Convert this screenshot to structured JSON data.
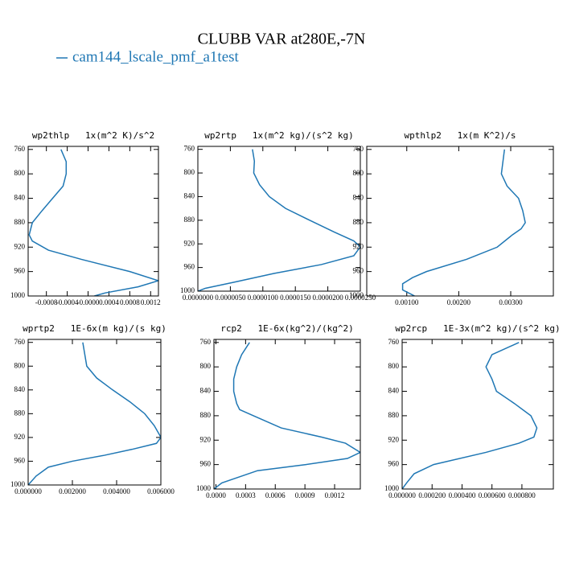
{
  "title": "CLUBB VAR at280E,-7N",
  "chart_data": [
    {
      "type": "line",
      "title": "wp2thlp   1x(m^2 K)/s^2",
      "y": [
        760,
        780,
        800,
        820,
        840,
        860,
        880,
        900,
        910,
        925,
        940,
        960,
        975,
        985,
        995,
        1000
      ],
      "ylim": [
        755,
        1000
      ],
      "y_inverted": true,
      "yticks": [
        760,
        800,
        840,
        880,
        920,
        960,
        1000
      ],
      "xlim": [
        -0.00115,
        0.00135
      ],
      "xticks": [
        -0.0008,
        -0.0004,
        {
          "value": 0,
          "label": "-0.0000"
        },
        0.0004,
        0.0008,
        0.0012
      ],
      "series": [
        {
          "name": "cam144_lscale_pmf_a1test",
          "color": "#1f77b4",
          "values": [
            -0.00052,
            -0.00042,
            -0.00042,
            -0.00048,
            -0.00068,
            -0.00088,
            -0.00107,
            -0.00113,
            -0.00107,
            -0.00076,
            -0.00013,
            0.0008,
            0.00135,
            0.00096,
            0.00033,
            0.00012
          ]
        }
      ]
    },
    {
      "type": "line",
      "title": "wp2rtp   1x(m^2 kg)/(s^2 kg)",
      "y": [
        760,
        780,
        800,
        820,
        840,
        860,
        880,
        900,
        915,
        925,
        940,
        955,
        970,
        985,
        995,
        1000
      ],
      "ylim": [
        755,
        1000
      ],
      "y_inverted": true,
      "yticks": [
        760,
        800,
        840,
        880,
        920,
        960,
        1000
      ],
      "xlim": [
        0,
        2.5e-05
      ],
      "xticks": [
        {
          "value": 0,
          "label": "0.0000000"
        },
        {
          "value": 5e-06,
          "label": "0.0000050"
        },
        {
          "value": 1e-05,
          "label": "0.0000100"
        },
        {
          "value": 1.5e-05,
          "label": "0.0000150"
        },
        {
          "value": 2e-05,
          "label": "0.0000200"
        },
        {
          "value": 2.5e-05,
          "label": "0.0000250"
        }
      ],
      "series": [
        {
          "name": "cam144_lscale_pmf_a1test",
          "color": "#1f77b4",
          "values": [
            8.4e-06,
            8.7e-06,
            8.6e-06,
            9.5e-06,
            1.1e-05,
            1.35e-05,
            1.72e-05,
            2.1e-05,
            2.4e-05,
            2.5e-05,
            2.4e-05,
            1.9e-05,
            1.17e-05,
            5.5e-06,
            1.2e-06,
            0
          ]
        }
      ]
    },
    {
      "type": "line",
      "title": "wpthlp2   1x(m K^2)/s",
      "y": [
        760,
        800,
        820,
        840,
        860,
        880,
        890,
        900,
        920,
        940,
        960,
        970,
        980,
        990,
        997,
        1000
      ],
      "ylim": [
        755,
        1000
      ],
      "y_inverted": true,
      "yticks": [
        760,
        800,
        840,
        880,
        920,
        960,
        1000
      ],
      "xlim": [
        0.00023,
        0.00382
      ],
      "xticks": [
        {
          "value": 0.001,
          "label": "0.00100"
        },
        {
          "value": 0.002,
          "label": "0.00200"
        },
        {
          "value": 0.003,
          "label": "0.00300"
        }
      ],
      "series": [
        {
          "name": "cam144_lscale_pmf_a1test",
          "color": "#1f77b4",
          "values": [
            0.00288,
            0.00282,
            0.00293,
            0.00315,
            0.00323,
            0.00328,
            0.0032,
            0.00303,
            0.00274,
            0.00215,
            0.00138,
            0.00111,
            0.00092,
            0.00092,
            0.00108,
            0.00115
          ]
        }
      ]
    },
    {
      "type": "line",
      "title": "wprtp2   1E-6x(m kg)/(s kg)",
      "y": [
        760,
        800,
        820,
        840,
        860,
        880,
        900,
        915,
        920,
        930,
        940,
        950,
        960,
        970,
        985,
        1000
      ],
      "ylim": [
        755,
        1000
      ],
      "y_inverted": true,
      "yticks": [
        760,
        800,
        840,
        880,
        920,
        960,
        1000
      ],
      "xlim": [
        0,
        0.006
      ],
      "xticks": [
        {
          "value": 0,
          "label": "0.000000"
        },
        {
          "value": 0.002,
          "label": "0.002000"
        },
        {
          "value": 0.004,
          "label": "0.004000"
        },
        {
          "value": 0.006,
          "label": "0.006000"
        }
      ],
      "series": [
        {
          "name": "cam144_lscale_pmf_a1test",
          "color": "#1f77b4",
          "values": [
            0.00247,
            0.00265,
            0.0031,
            0.00382,
            0.0046,
            0.00527,
            0.0057,
            0.00593,
            0.006,
            0.0058,
            0.0047,
            0.00345,
            0.002,
            0.00091,
            0.00036,
            0
          ]
        }
      ]
    },
    {
      "type": "line",
      "title": "rcp2   1E-6x(kg^2)/(kg^2)",
      "y": [
        760,
        780,
        800,
        820,
        840,
        860,
        870,
        880,
        900,
        915,
        925,
        940,
        950,
        960,
        970,
        990,
        1000
      ],
      "ylim": [
        755,
        1000
      ],
      "y_inverted": true,
      "yticks": [
        760,
        800,
        840,
        880,
        920,
        960,
        1000
      ],
      "xlim": [
        -2e-05,
        0.00146
      ],
      "xticks": [
        {
          "value": 0,
          "label": "0.0000"
        },
        0.0003,
        0.0006,
        0.0009,
        0.0012
      ],
      "series": [
        {
          "name": "cam144_lscale_pmf_a1test",
          "color": "#1f77b4",
          "values": [
            0.00034,
            0.00026,
            0.00021,
            0.00018,
            0.00018,
            0.00021,
            0.00024,
            0.00038,
            0.00066,
            0.00107,
            0.00131,
            0.00146,
            0.00133,
            0.00091,
            0.00042,
            6e-05,
            -2e-05
          ]
        }
      ]
    },
    {
      "type": "line",
      "title": "wp2rcp   1E-3x(m^2 kg)/(s^2 kg)",
      "y": [
        760,
        780,
        800,
        820,
        840,
        860,
        880,
        900,
        915,
        925,
        940,
        960,
        975,
        990,
        1000
      ],
      "ylim": [
        755,
        1000
      ],
      "y_inverted": true,
      "yticks": [
        760,
        800,
        840,
        880,
        920,
        960,
        1000
      ],
      "xlim": [
        0,
        0.00101
      ],
      "xticks": [
        {
          "value": 0,
          "label": "0.000000"
        },
        {
          "value": 0.0002,
          "label": "0.000200"
        },
        {
          "value": 0.0004,
          "label": "0.000400"
        },
        {
          "value": 0.0006,
          "label": "0.000600"
        },
        {
          "value": 0.0008,
          "label": "0.000800"
        }
      ],
      "series": [
        {
          "name": "cam144_lscale_pmf_a1test",
          "color": "#1f77b4",
          "values": [
            0.00078,
            0.0006,
            0.00056,
            0.0006,
            0.00063,
            0.00075,
            0.00086,
            0.0009,
            0.00088,
            0.00078,
            0.00056,
            0.00021,
            8e-05,
            3e-05,
            0
          ]
        }
      ]
    }
  ]
}
